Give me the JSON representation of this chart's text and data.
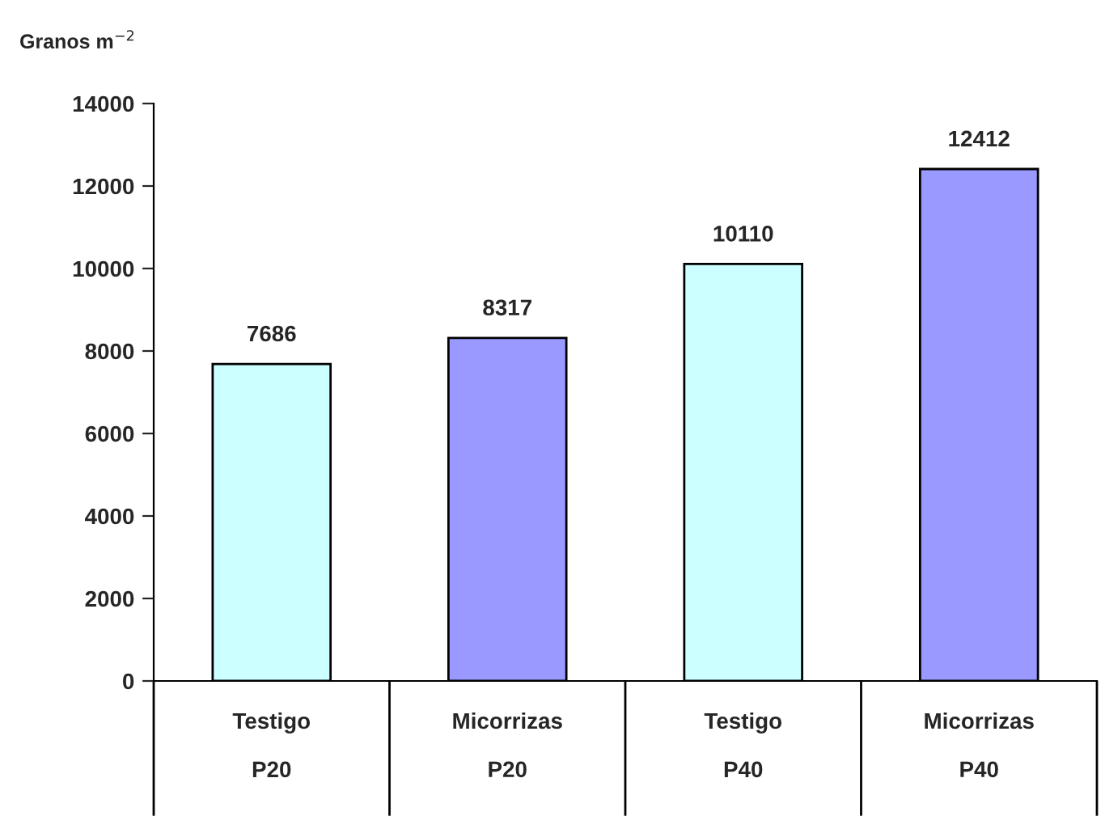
{
  "chart_data": {
    "type": "bar",
    "ylabel": "Granos m$^{−2}$",
    "categories": [
      "Testigo\n\nP20",
      "Micorrizas\n\nP20",
      "Testigo\n\nP40",
      "Micorrizas\n\nP40"
    ],
    "values": [
      7686,
      8317,
      10110,
      12412
    ],
    "colors": [
      "#ccffff",
      "#9999ff",
      "#ccffff",
      "#9999ff"
    ],
    "ylim": [
      0,
      14000
    ],
    "yticks": [
      0,
      2000,
      4000,
      6000,
      8000,
      10000,
      12000,
      14000
    ],
    "data_labels": true,
    "grid": false,
    "legend": false
  }
}
